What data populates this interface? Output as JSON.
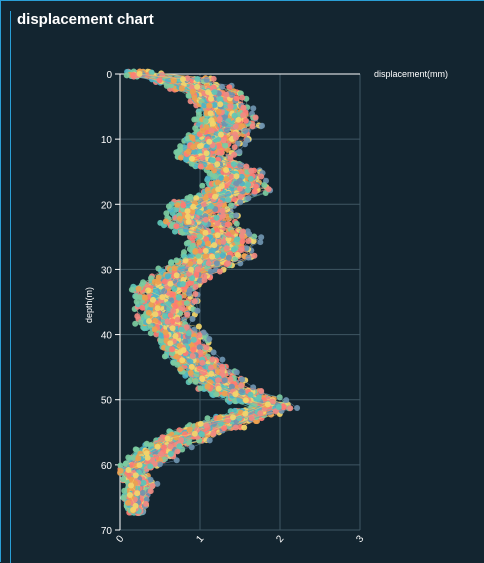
{
  "title": "displacement chart",
  "chart_data": {
    "type": "line",
    "title": "displacement chart",
    "xlabel": "displacement(mm)",
    "ylabel": "depth(m)",
    "xlim": [
      0,
      3
    ],
    "ylim": [
      0,
      70
    ],
    "y_inverted": true,
    "x_axis_position": "top",
    "x_tick_labels_position": "bottom",
    "x_ticks": [
      0,
      1,
      2,
      3
    ],
    "y_ticks": [
      0,
      10,
      20,
      30,
      40,
      50,
      60,
      70
    ],
    "grid": true,
    "marker": "circle",
    "series_count": 60,
    "profile": {
      "depth": [
        0,
        1,
        3,
        5,
        8,
        10,
        13,
        15,
        18,
        20,
        23,
        25,
        28,
        30,
        33,
        35,
        38,
        40,
        43,
        45,
        48,
        50,
        51,
        53,
        55,
        57,
        59,
        61,
        63,
        65,
        67
      ],
      "displacement_mean": [
        0.3,
        0.8,
        1.15,
        1.3,
        1.35,
        1.2,
        1.05,
        1.45,
        1.45,
        1.05,
        1.0,
        1.3,
        1.25,
        0.9,
        0.55,
        0.6,
        0.55,
        0.75,
        0.85,
        1.05,
        1.3,
        1.7,
        1.9,
        1.45,
        0.95,
        0.6,
        0.4,
        0.15,
        0.25,
        0.2,
        0.2
      ],
      "displacement_spread": [
        0.25,
        0.45,
        0.4,
        0.35,
        0.4,
        0.4,
        0.4,
        0.35,
        0.45,
        0.45,
        0.5,
        0.45,
        0.45,
        0.4,
        0.4,
        0.4,
        0.35,
        0.35,
        0.3,
        0.35,
        0.35,
        0.35,
        0.3,
        0.35,
        0.35,
        0.3,
        0.3,
        0.2,
        0.2,
        0.15,
        0.1
      ]
    },
    "colors": [
      "#5fc6b7",
      "#f08a82",
      "#eea14f",
      "#f3d66b",
      "#6f94b0",
      "#7ccba0",
      "#4fb3c8",
      "#ff7b72"
    ]
  }
}
